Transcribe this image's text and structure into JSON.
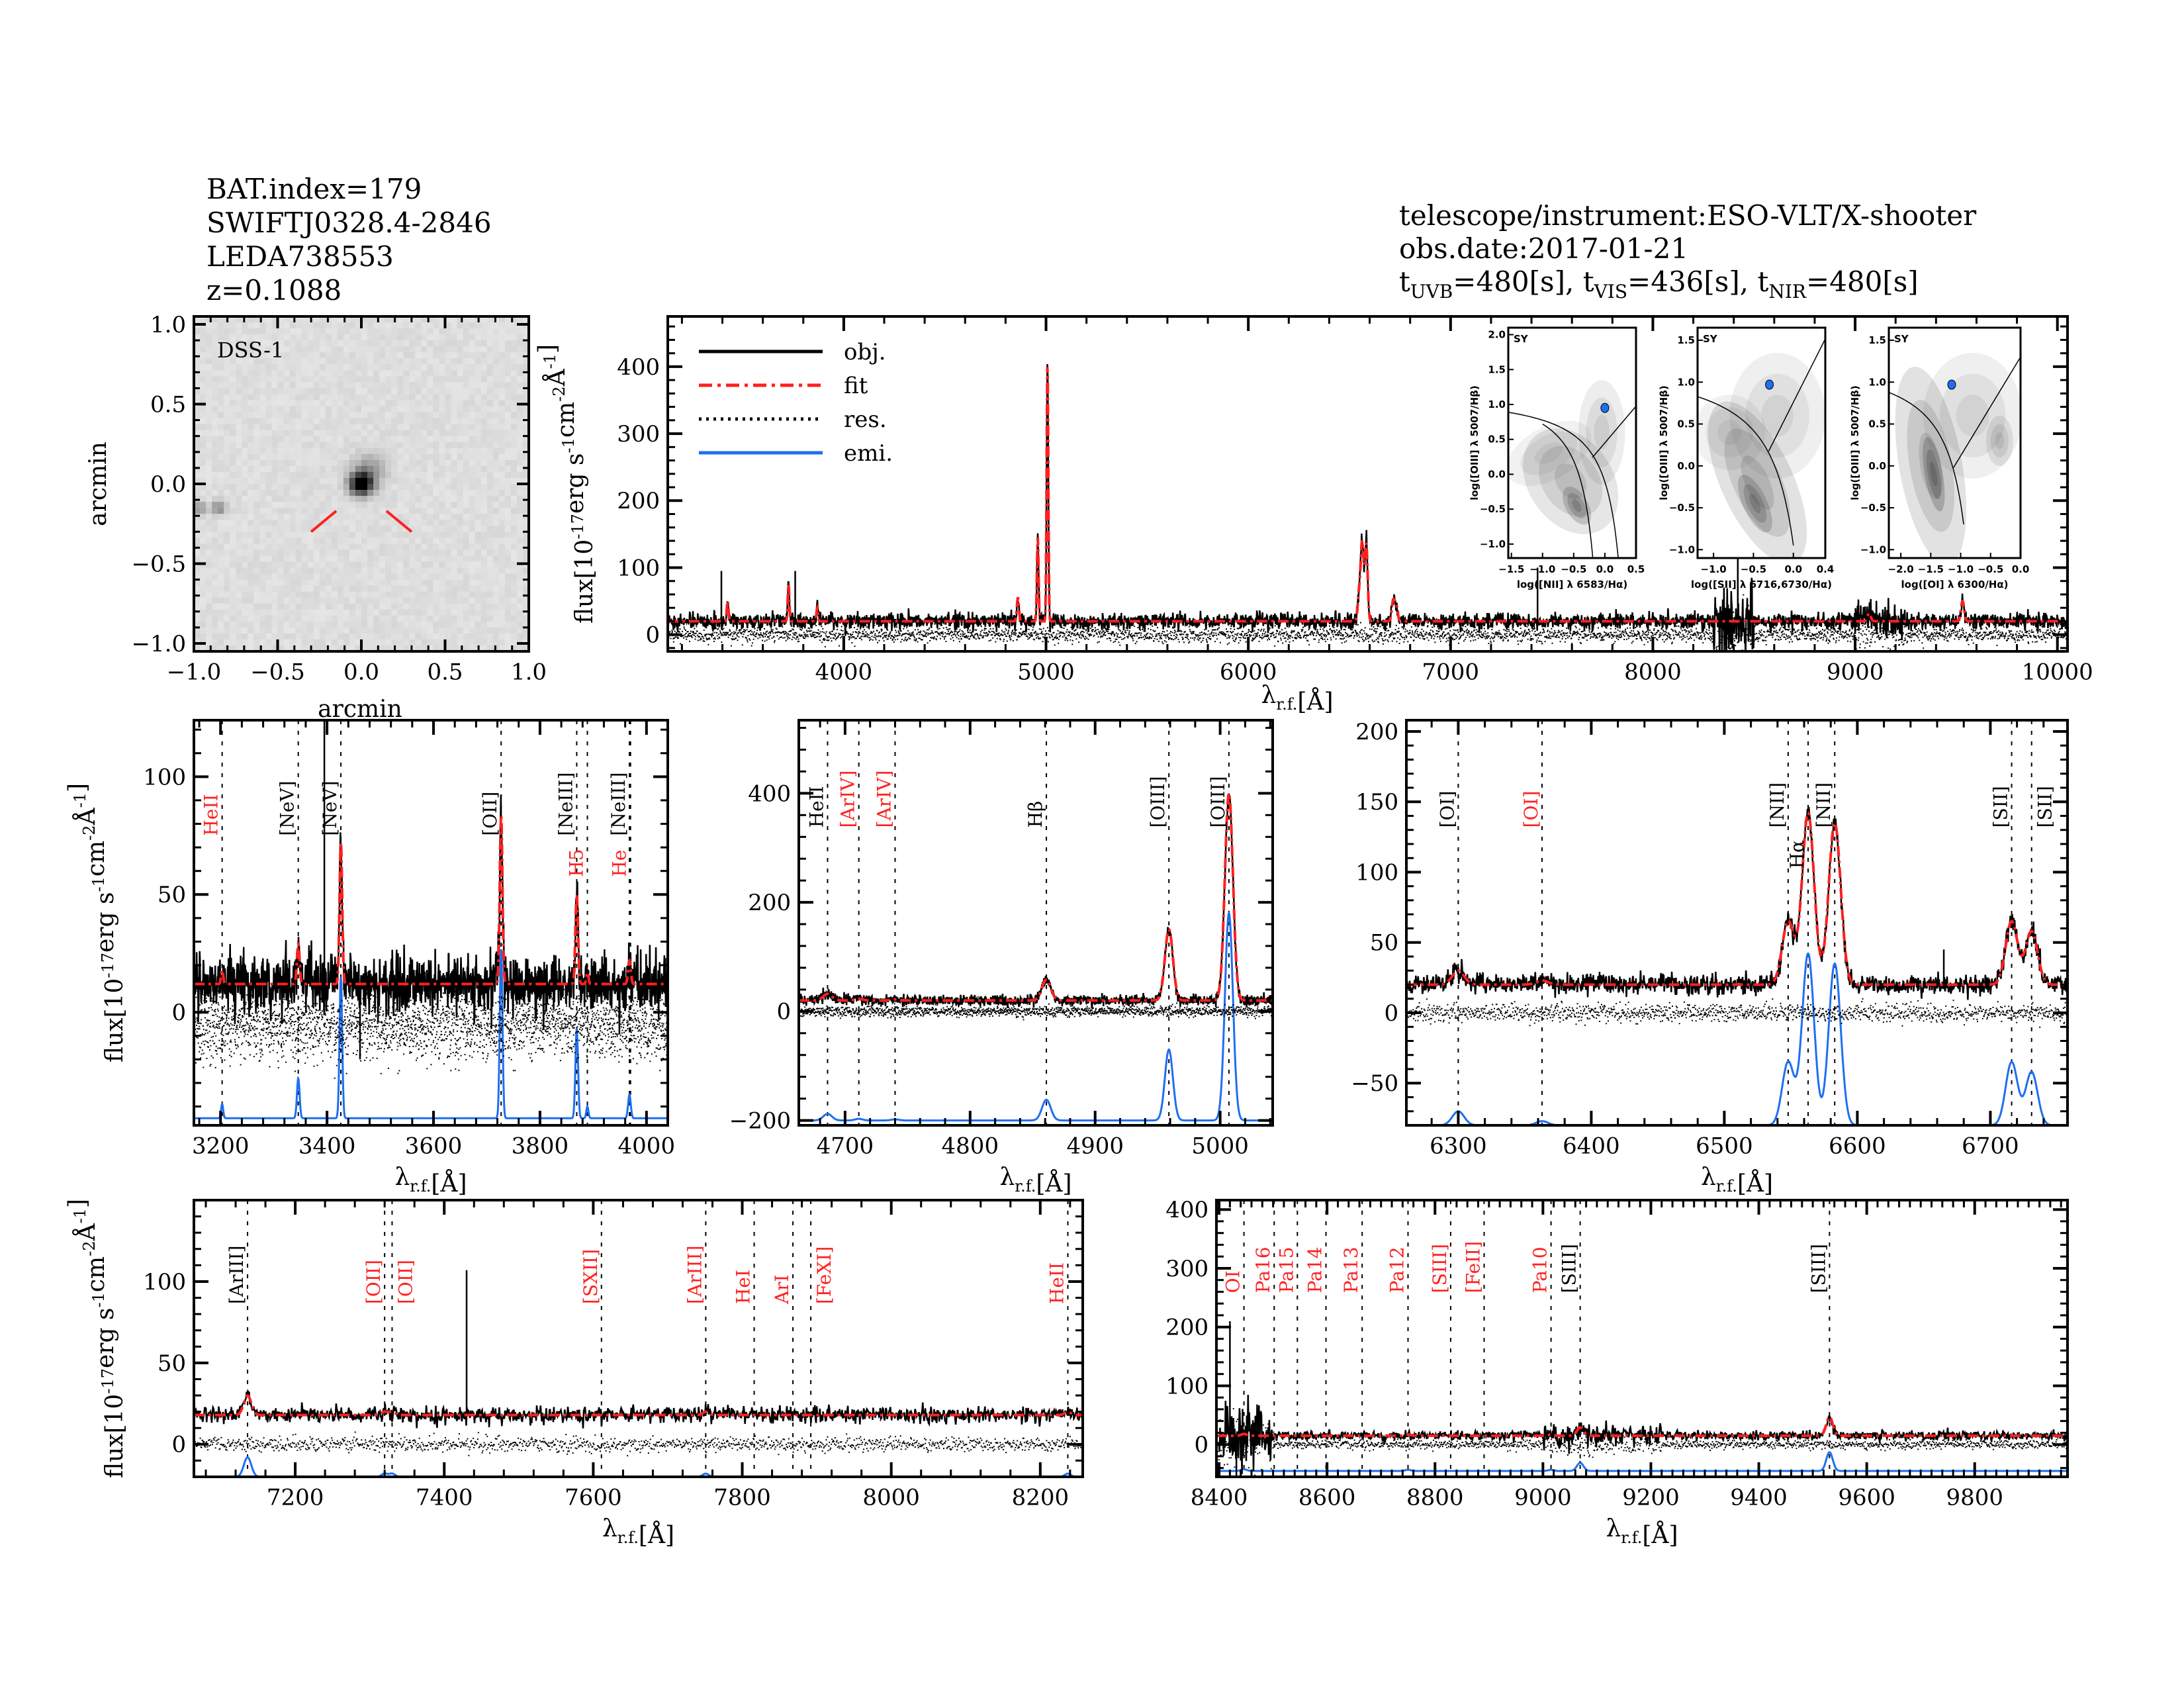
{
  "header_left": [
    "BAT.index=179",
    "SWIFTJ0328.4-2846",
    "LEDA738553",
    "z=0.1088"
  ],
  "header_right": {
    "instrument": "telescope/instrument:ESO-VLT/X-shooter",
    "obs_date": "obs.date:2017-01-21",
    "exposures": [
      {
        "t": "t",
        "sub": "UVB",
        "val": "=480[s], "
      },
      {
        "t": "t",
        "sub": "VIS",
        "val": "=436[s], "
      },
      {
        "t": "t",
        "sub": "NIR",
        "val": "=480[s]"
      }
    ]
  },
  "colors": {
    "obj": "#000000",
    "fit": "#ff2020",
    "res": "#000000",
    "emi": "#1e6ff0",
    "marker_red": "#ff2020",
    "marker_black": "#000000",
    "class_label": "#1e6ff0"
  },
  "legend": [
    {
      "label": "obj.",
      "series": "obj"
    },
    {
      "label": "fit",
      "series": "fit"
    },
    {
      "label": "res.",
      "series": "res"
    },
    {
      "label": "emi.",
      "series": "emi"
    }
  ],
  "image_panel": {
    "label": "DSS-1",
    "xlabel": "arcmin",
    "ylabel": "arcmin",
    "xlim": [
      -1.0,
      1.0
    ],
    "ylim": [
      -1.05,
      1.05
    ],
    "xticks": [
      -1.0,
      -0.5,
      0.0,
      0.5,
      1.0
    ],
    "yticks": [
      -1.0,
      -0.5,
      0.0,
      0.5,
      1.0
    ]
  },
  "chart_data": [
    {
      "id": "full",
      "type": "line",
      "xlabel": [
        {
          "t": "λ"
        },
        {
          "sub": "r.f."
        },
        {
          "t": "[Å]"
        }
      ],
      "ylabel": [
        {
          "t": "flux[10"
        },
        {
          "sup": "-17"
        },
        {
          "t": "erg s"
        },
        {
          "sup": "-1"
        },
        {
          "t": "cm"
        },
        {
          "sup": "-2"
        },
        {
          "t": "Å"
        },
        {
          "sup": "-1"
        },
        {
          "t": "]"
        }
      ],
      "xlim": [
        3130,
        10050
      ],
      "ylim": [
        -25,
        475
      ],
      "xticks": [
        4000,
        5000,
        6000,
        7000,
        8000,
        9000,
        10000
      ],
      "yticks": [
        0,
        100,
        200,
        300,
        400
      ],
      "continuum": 20,
      "emi_baseline": 0,
      "lines": [
        [
          3426,
          30,
          4
        ],
        [
          3727,
          55,
          4
        ],
        [
          3869,
          20,
          4
        ],
        [
          4861,
          35,
          5
        ],
        [
          4959,
          125,
          4
        ],
        [
          5007,
          385,
          4
        ],
        [
          6548,
          40,
          7
        ],
        [
          6563,
          115,
          7
        ],
        [
          6583,
          115,
          7
        ],
        [
          6716,
          30,
          7
        ],
        [
          6731,
          25,
          7
        ],
        [
          9069,
          12,
          8
        ],
        [
          9531,
          30,
          8
        ]
      ],
      "spikes": [
        [
          3395,
          95
        ],
        [
          3760,
          95
        ],
        [
          7430,
          100
        ],
        [
          8420,
          330
        ]
      ],
      "markers": []
    },
    {
      "id": "uv",
      "type": "line",
      "xlabel": [
        {
          "t": "λ"
        },
        {
          "sub": "r.f."
        },
        {
          "t": "[Å]"
        }
      ],
      "ylabel": [
        {
          "t": "flux[10"
        },
        {
          "sup": "-17"
        },
        {
          "t": "erg s"
        },
        {
          "sup": "-1"
        },
        {
          "t": "cm"
        },
        {
          "sup": "-2"
        },
        {
          "t": "Å"
        },
        {
          "sup": "-1"
        },
        {
          "t": "]"
        }
      ],
      "xlim": [
        3150,
        4040
      ],
      "ylim": [
        -48,
        124
      ],
      "xticks": [
        3200,
        3400,
        3600,
        3800,
        4000
      ],
      "yticks": [
        0,
        50,
        100
      ],
      "continuum": 12,
      "emi_baseline": -45,
      "lines": [
        [
          3203,
          6,
          2
        ],
        [
          3346,
          17,
          2.5
        ],
        [
          3426,
          60,
          2.5
        ],
        [
          3727,
          72,
          2.5
        ],
        [
          3869,
          38,
          2.5
        ],
        [
          3889,
          5,
          2
        ],
        [
          3968,
          10,
          2.5
        ]
      ],
      "spikes": [
        [
          3395,
          230
        ],
        [
          3462,
          -20
        ]
      ],
      "markers": [
        {
          "label": "HeII",
          "wave": 3203,
          "color": "red"
        },
        {
          "label": "[NeV]",
          "wave": 3346,
          "color": "black"
        },
        {
          "label": "[NeV]",
          "wave": 3426,
          "color": "black"
        },
        {
          "label": "[OII]",
          "wave": 3727,
          "color": "black"
        },
        {
          "label": "[NeIII]",
          "wave": 3869,
          "color": "black"
        },
        {
          "label": "H5",
          "wave": 3889,
          "color": "red"
        },
        {
          "label": "[NeIII]",
          "wave": 3968,
          "color": "black"
        },
        {
          "label": "He",
          "wave": 3970,
          "color": "red"
        }
      ]
    },
    {
      "id": "hbeta",
      "type": "line",
      "xlabel": [
        {
          "t": "λ"
        },
        {
          "sub": "r.f."
        },
        {
          "t": "[Å]"
        }
      ],
      "ylabel": null,
      "xlim": [
        4663,
        5042
      ],
      "ylim": [
        -209,
        534
      ],
      "xticks": [
        4700,
        4800,
        4900,
        5000
      ],
      "yticks": [
        -200,
        0,
        200,
        400
      ],
      "continuum": 20,
      "emi_baseline": -200,
      "lines": [
        [
          4686,
          12,
          3.5
        ],
        [
          4711,
          3,
          3
        ],
        [
          4740,
          2,
          3
        ],
        [
          4861,
          38,
          3.5
        ],
        [
          4959,
          130,
          3.2
        ],
        [
          5007,
          380,
          3.2
        ]
      ],
      "spikes": [],
      "markers": [
        {
          "label": "HeII",
          "wave": 4686,
          "color": "black"
        },
        {
          "label": "[ArIV]",
          "wave": 4711,
          "color": "red"
        },
        {
          "label": "[ArIV]",
          "wave": 4740,
          "color": "red"
        },
        {
          "label": "Hβ",
          "wave": 4861,
          "color": "black"
        },
        {
          "label": "[OIII]",
          "wave": 4959,
          "color": "black"
        },
        {
          "label": "[OIII]",
          "wave": 5007,
          "color": "black"
        }
      ]
    },
    {
      "id": "halpha",
      "type": "line",
      "xlabel": [
        {
          "t": "λ"
        },
        {
          "sub": "r.f."
        },
        {
          "t": "[Å]"
        }
      ],
      "ylabel": null,
      "xlim": [
        6261,
        6758
      ],
      "ylim": [
        -80,
        208
      ],
      "xticks": [
        6300,
        6400,
        6500,
        6600,
        6700
      ],
      "yticks": [
        -50,
        0,
        50,
        100,
        150,
        200
      ],
      "continuum": 20,
      "emi_baseline": -80,
      "lines": [
        [
          6300,
          10,
          4.5
        ],
        [
          6363,
          3,
          4.5
        ],
        [
          6548,
          45,
          4.5
        ],
        [
          6563,
          122,
          4.5
        ],
        [
          6583,
          115,
          4.5
        ],
        [
          6716,
          45,
          4.5
        ],
        [
          6731,
          38,
          4.5
        ]
      ],
      "spikes": [
        [
          6665,
          45
        ]
      ],
      "markers": [
        {
          "label": "[OI]",
          "wave": 6300,
          "color": "black"
        },
        {
          "label": "[OI]",
          "wave": 6363,
          "color": "red"
        },
        {
          "label": "[NII]",
          "wave": 6548,
          "color": "black"
        },
        {
          "label": "Hα",
          "wave": 6563,
          "color": "black"
        },
        {
          "label": "[NII]",
          "wave": 6583,
          "color": "black"
        },
        {
          "label": "[SII]",
          "wave": 6716,
          "color": "black"
        },
        {
          "label": "[SII]",
          "wave": 6731,
          "color": "black"
        }
      ]
    },
    {
      "id": "red",
      "type": "line",
      "xlabel": [
        {
          "t": "λ"
        },
        {
          "sub": "r.f."
        },
        {
          "t": "[Å]"
        }
      ],
      "ylabel": [
        {
          "t": "flux[10"
        },
        {
          "sup": "-17"
        },
        {
          "t": "erg s"
        },
        {
          "sup": "-1"
        },
        {
          "t": "cm"
        },
        {
          "sup": "-2"
        },
        {
          "t": "Å"
        },
        {
          "sup": "-1"
        },
        {
          "t": "]"
        }
      ],
      "xlim": [
        7064,
        8257
      ],
      "ylim": [
        -20,
        150
      ],
      "xticks": [
        7200,
        7400,
        7600,
        7800,
        8000,
        8200
      ],
      "yticks": [
        0,
        50,
        100
      ],
      "continuum": 18,
      "emi_baseline": -20,
      "lines": [
        [
          7136,
          12,
          5
        ],
        [
          7320,
          2,
          4
        ],
        [
          7330,
          2,
          4
        ],
        [
          7751,
          2,
          4
        ],
        [
          8237,
          2,
          4
        ]
      ],
      "spikes": [
        [
          7430,
          107
        ]
      ],
      "markers": [
        {
          "label": "[ArIII]",
          "wave": 7136,
          "color": "black"
        },
        {
          "label": "[OII]",
          "wave": 7320,
          "color": "red"
        },
        {
          "label": "[OII]",
          "wave": 7330,
          "color": "red"
        },
        {
          "label": "[SXII]",
          "wave": 7611,
          "color": "red"
        },
        {
          "label": "[ArIII]",
          "wave": 7751,
          "color": "red"
        },
        {
          "label": "HeI",
          "wave": 7816,
          "color": "red"
        },
        {
          "label": "ArI",
          "wave": 7868,
          "color": "red"
        },
        {
          "label": "[FeXI]",
          "wave": 7892,
          "color": "red"
        },
        {
          "label": "HeII",
          "wave": 8237,
          "color": "red"
        }
      ]
    },
    {
      "id": "nir",
      "type": "line",
      "xlabel": [
        {
          "t": "λ"
        },
        {
          "sub": "r.f."
        },
        {
          "t": "[Å]"
        }
      ],
      "ylabel": null,
      "xlim": [
        8395,
        9972
      ],
      "ylim": [
        -55,
        416
      ],
      "xticks": [
        8400,
        8600,
        8800,
        9000,
        9200,
        9400,
        9600,
        9800
      ],
      "yticks": [
        0,
        100,
        200,
        300,
        400
      ],
      "continuum": 15,
      "emi_baseline": -45,
      "lines": [
        [
          8446,
          3,
          5
        ],
        [
          8750,
          2,
          5
        ],
        [
          9015,
          2,
          5
        ],
        [
          9069,
          14,
          6
        ],
        [
          9531,
          32,
          6
        ]
      ],
      "spikes": [
        [
          8420,
          210
        ],
        [
          8432,
          -60
        ]
      ],
      "markers": [
        {
          "label": "OI",
          "wave": 8446,
          "color": "red"
        },
        {
          "label": "Pa16",
          "wave": 8502,
          "color": "red"
        },
        {
          "label": "Pa15",
          "wave": 8545,
          "color": "red"
        },
        {
          "label": "Pa14",
          "wave": 8598,
          "color": "red"
        },
        {
          "label": "Pa13",
          "wave": 8665,
          "color": "red"
        },
        {
          "label": "Pa12",
          "wave": 8750,
          "color": "red"
        },
        {
          "label": "[SIII]",
          "wave": 8829,
          "color": "red"
        },
        {
          "label": "[FeII]",
          "wave": 8891,
          "color": "red"
        },
        {
          "label": "Pa10",
          "wave": 9015,
          "color": "red"
        },
        {
          "label": "[SIII]",
          "wave": 9069,
          "color": "black"
        },
        {
          "label": "[SIII]",
          "wave": 9531,
          "color": "black"
        }
      ]
    }
  ],
  "bpt_insets": [
    {
      "id": "nii",
      "class_label": "SY",
      "xlabel": "log([NII] λ 6583/Hα)",
      "ylabel": "log([OIII] λ 5007/Hβ)",
      "xlim": [
        -1.55,
        0.5
      ],
      "ylim": [
        -1.2,
        2.1
      ],
      "xticks": [
        -1.5,
        -1.0,
        -0.5,
        0.0,
        0.5
      ],
      "yticks": [
        -1.0,
        -0.5,
        0.0,
        0.5,
        1.0,
        1.5,
        2.0
      ],
      "point": [
        0.0,
        0.95
      ]
    },
    {
      "id": "sii",
      "class_label": "SY",
      "xlabel": "log([SII] λ 6716,6730/Hα)",
      "ylabel": "log([OIII] λ 5007/Hβ)",
      "xlim": [
        -1.2,
        0.4
      ],
      "ylim": [
        -1.1,
        1.65
      ],
      "xticks": [
        -1.0,
        -0.5,
        0.0,
        0.4
      ],
      "yticks": [
        -1.0,
        -0.5,
        0.0,
        0.5,
        1.0,
        1.5
      ],
      "point": [
        -0.3,
        0.97
      ]
    },
    {
      "id": "oi",
      "class_label": "SY",
      "xlabel": "log([OI] λ 6300/Hα)",
      "ylabel": "log([OIII] λ 5007/Hβ)",
      "xlim": [
        -2.2,
        0.0
      ],
      "ylim": [
        -1.1,
        1.65
      ],
      "xticks": [
        -2.0,
        -1.5,
        -1.0,
        -0.5,
        0.0
      ],
      "yticks": [
        -1.0,
        -0.5,
        0.0,
        0.5,
        1.0,
        1.5
      ],
      "point": [
        -1.15,
        0.97
      ]
    }
  ]
}
